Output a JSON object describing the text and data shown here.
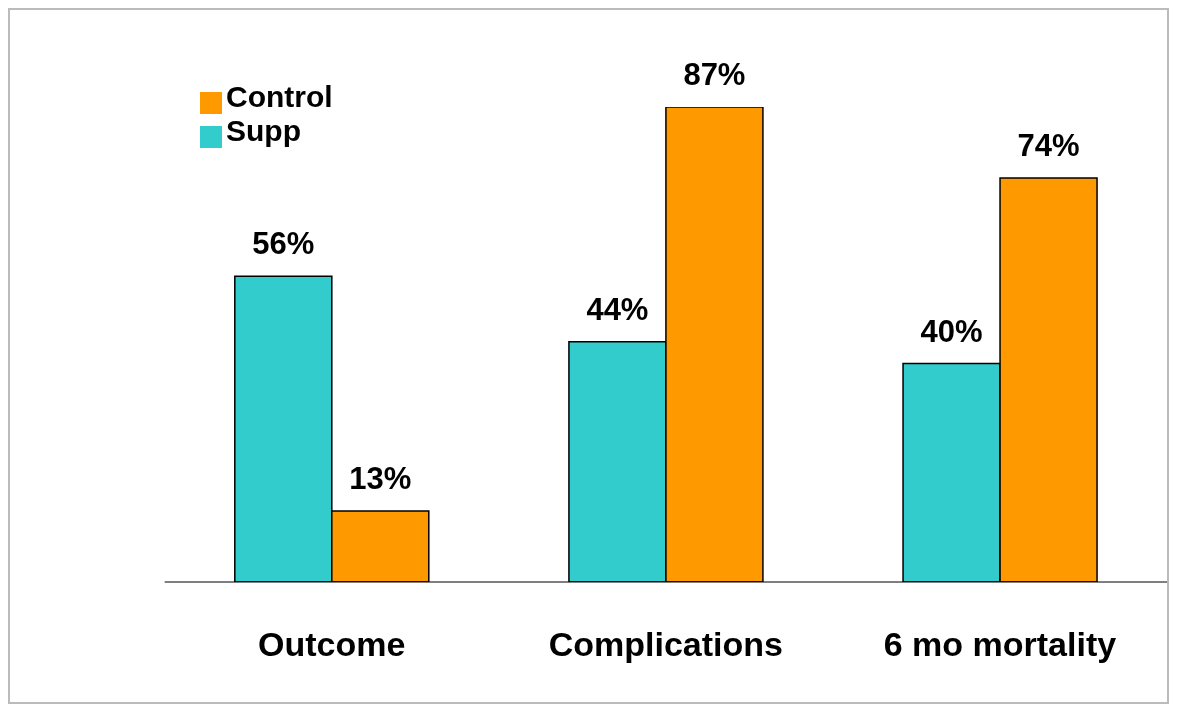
{
  "chart_data": {
    "type": "bar",
    "categories": [
      "Outcome",
      "Complications",
      "6 mo mortality"
    ],
    "series": [
      {
        "name": "Supp",
        "color": "#33cccc",
        "values": [
          56,
          44,
          40
        ],
        "value_labels": [
          "56%",
          "44%",
          "40%"
        ]
      },
      {
        "name": "Control",
        "color": "#ff9900",
        "values": [
          13,
          87,
          74
        ],
        "value_labels": [
          "13%",
          "87%",
          "74%"
        ]
      }
    ],
    "legend": "top left",
    "grid": false
  }
}
